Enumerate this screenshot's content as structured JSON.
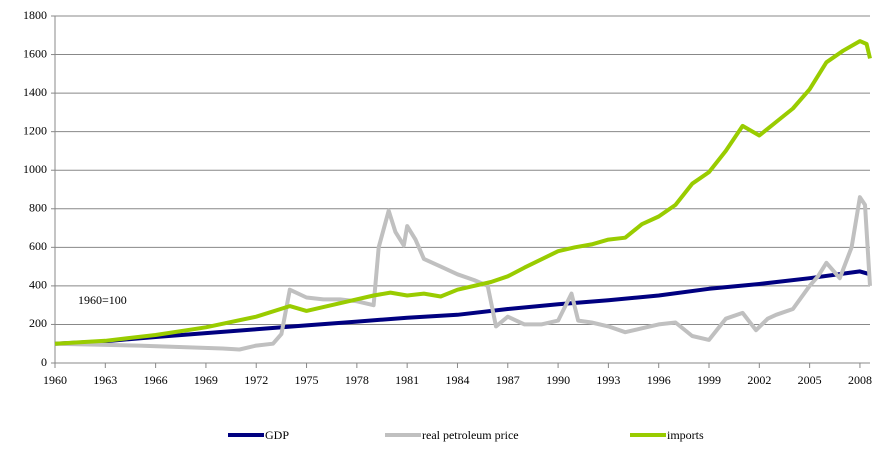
{
  "chart_data": {
    "type": "line",
    "annotations": [
      "1960=100"
    ],
    "xlim": [
      1960,
      2008.6
    ],
    "xticks": [
      1960,
      1963,
      1966,
      1969,
      1972,
      1975,
      1978,
      1981,
      1984,
      1987,
      1990,
      1993,
      1996,
      1999,
      2002,
      2005,
      2008
    ],
    "ylim": [
      0,
      1800
    ],
    "yticks": [
      0,
      200,
      400,
      600,
      800,
      1000,
      1200,
      1400,
      1600,
      1800
    ],
    "grid": true,
    "legend": "bottom",
    "series": [
      {
        "name": "GDP",
        "color": "#000080",
        "x": [
          1960,
          1963,
          1966,
          1969,
          1972,
          1975,
          1978,
          1981,
          1984,
          1987,
          1990,
          1993,
          1996,
          1999,
          2002,
          2005,
          2008,
          2008.6
        ],
        "values": [
          100,
          113,
          135,
          155,
          175,
          195,
          215,
          235,
          250,
          280,
          305,
          325,
          350,
          385,
          410,
          440,
          475,
          460
        ]
      },
      {
        "name": "real petroleum price",
        "color": "#c0c0c0",
        "x": [
          1960,
          1965,
          1970,
          1971,
          1972,
          1973,
          1973.5,
          1974,
          1975,
          1976,
          1977,
          1978,
          1979,
          1979.3,
          1979.9,
          1980.3,
          1980.8,
          1981,
          1981.5,
          1982,
          1983,
          1984,
          1985,
          1985.8,
          1986.3,
          1987,
          1988,
          1989,
          1990,
          1990.8,
          1991.2,
          1992,
          1993,
          1994,
          1995,
          1996,
          1997,
          1998,
          1999,
          2000,
          2001,
          2001.8,
          2002.5,
          2003,
          2004,
          2005,
          2005.5,
          2006,
          2006.8,
          2007.5,
          2008,
          2008.3,
          2008.6
        ],
        "values": [
          100,
          90,
          75,
          70,
          90,
          100,
          150,
          380,
          340,
          330,
          330,
          320,
          300,
          600,
          790,
          680,
          610,
          710,
          640,
          540,
          500,
          460,
          430,
          400,
          190,
          240,
          200,
          200,
          220,
          360,
          220,
          210,
          190,
          160,
          180,
          200,
          210,
          140,
          120,
          230,
          260,
          170,
          230,
          250,
          280,
          400,
          450,
          520,
          440,
          600,
          860,
          820,
          400
        ]
      },
      {
        "name": "imports",
        "color": "#99cc00",
        "x": [
          1960,
          1963,
          1966,
          1969,
          1972,
          1974,
          1975,
          1977,
          1979,
          1980,
          1981,
          1982,
          1983,
          1984,
          1986,
          1987,
          1988,
          1990,
          1991,
          1992,
          1993,
          1994,
          1995,
          1996,
          1997,
          1998,
          1999,
          2000,
          2001,
          2002,
          2003,
          2004,
          2005,
          2006,
          2007,
          2008,
          2008.4,
          2008.6
        ],
        "values": [
          100,
          115,
          145,
          185,
          240,
          295,
          270,
          310,
          350,
          365,
          350,
          360,
          345,
          380,
          420,
          450,
          495,
          580,
          600,
          615,
          640,
          650,
          720,
          760,
          820,
          930,
          990,
          1100,
          1230,
          1180,
          1250,
          1320,
          1420,
          1560,
          1620,
          1670,
          1655,
          1580
        ]
      }
    ]
  }
}
